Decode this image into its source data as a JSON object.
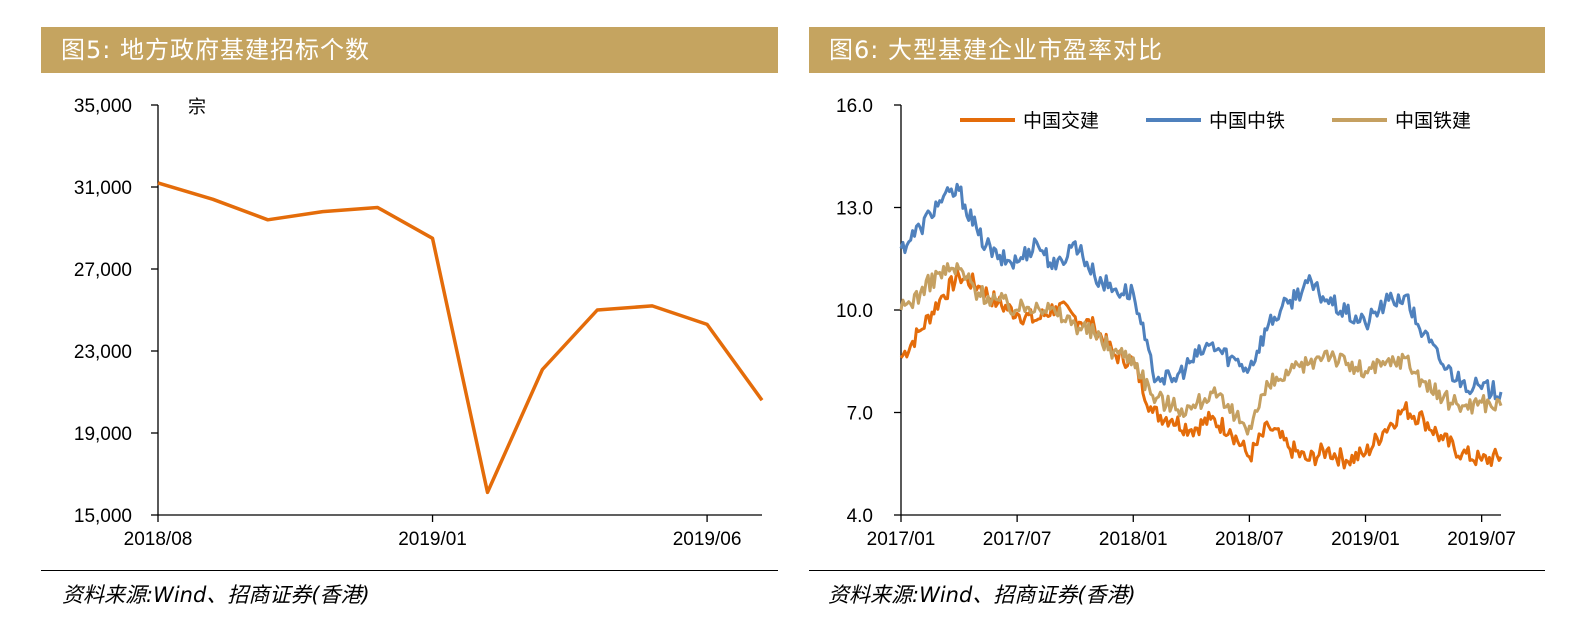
{
  "colors": {
    "title_bg": "#C5A460",
    "title_text": "#FFFFFF",
    "line_orange": "#E46C0A",
    "line_blue": "#4F81BD",
    "line_tan": "#C5A061"
  },
  "charts": [
    {
      "title": "图5: 地方政府基建招标个数",
      "source": "资料来源:Wind、招商证券(香港)"
    },
    {
      "title": "图6: 大型基建企业市盈率对比",
      "source": "资料来源:Wind、招商证券(香港)"
    }
  ],
  "chart_data": [
    {
      "type": "line",
      "title": "图5: 地方政府基建招标个数",
      "unit": "宗",
      "ylim": [
        15000,
        35000
      ],
      "yticks": [
        15000,
        19000,
        23000,
        27000,
        31000,
        35000
      ],
      "ytick_labels": [
        "15,000",
        "19,000",
        "23,000",
        "27,000",
        "31,000",
        "35,000"
      ],
      "categories": [
        "2018/08",
        "2018/09",
        "2018/10",
        "2018/11",
        "2018/12",
        "2019/01",
        "2019/02",
        "2019/03",
        "2019/04",
        "2019/05",
        "2019/06",
        "2019/07"
      ],
      "xtick_labels": [
        "2018/08",
        "2019/01",
        "2019/06"
      ],
      "xtick_categories": [
        "2018/08",
        "2019/01",
        "2019/06"
      ],
      "series": [
        {
          "name": "地方政府基建招标个数",
          "color": "#E46C0A",
          "values": [
            31200,
            30400,
            29400,
            29800,
            30000,
            28500,
            16100,
            22100,
            25000,
            25200,
            24300,
            20600
          ]
        }
      ]
    },
    {
      "type": "line",
      "title": "图6: 大型基建企业市盈率对比",
      "ylim": [
        4.0,
        16.0
      ],
      "yticks": [
        4.0,
        7.0,
        10.0,
        13.0,
        16.0
      ],
      "ytick_labels": [
        "4.0",
        "7.0",
        "10.0",
        "13.0",
        "16.0"
      ],
      "xlim": [
        "2017/01",
        "2019/08"
      ],
      "xticks": [
        "2017/01",
        "2017/07",
        "2018/01",
        "2018/07",
        "2019/01",
        "2019/07"
      ],
      "xtick_labels": [
        "2017/01",
        "2017/07",
        "2018/01",
        "2018/07",
        "2019/01",
        "2019/07"
      ],
      "legend": [
        "中国交建",
        "中国中铁",
        "中国铁建"
      ],
      "legend_position": "top-center",
      "series": [
        {
          "name": "中国交建",
          "color": "#E46C0A",
          "points": [
            [
              "2017/01",
              8.6
            ],
            [
              "2017/02",
              9.4
            ],
            [
              "2017/03",
              10.3
            ],
            [
              "2017/04",
              11.0
            ],
            [
              "2017/05",
              10.7
            ],
            [
              "2017/06",
              10.2
            ],
            [
              "2017/07",
              9.9
            ],
            [
              "2017/08",
              9.7
            ],
            [
              "2017/09",
              10.1
            ],
            [
              "2017/10",
              9.8
            ],
            [
              "2017/11",
              9.5
            ],
            [
              "2017/12",
              8.7
            ],
            [
              "2018/01",
              8.5
            ],
            [
              "2018/02",
              7.0
            ],
            [
              "2018/03",
              6.8
            ],
            [
              "2018/04",
              6.5
            ],
            [
              "2018/05",
              6.8
            ],
            [
              "2018/06",
              6.5
            ],
            [
              "2018/07",
              5.7
            ],
            [
              "2018/08",
              6.6
            ],
            [
              "2018/09",
              6.0
            ],
            [
              "2018/10",
              5.6
            ],
            [
              "2018/11",
              5.9
            ],
            [
              "2018/12",
              5.6
            ],
            [
              "2019/01",
              5.8
            ],
            [
              "2019/02",
              6.5
            ],
            [
              "2019/03",
              7.1
            ],
            [
              "2019/04",
              6.8
            ],
            [
              "2019/05",
              6.2
            ],
            [
              "2019/06",
              5.8
            ],
            [
              "2019/07",
              5.6
            ],
            [
              "2019/08",
              5.7
            ]
          ]
        },
        {
          "name": "中国中铁",
          "color": "#4F81BD",
          "points": [
            [
              "2017/01",
              11.8
            ],
            [
              "2017/02",
              12.4
            ],
            [
              "2017/03",
              13.2
            ],
            [
              "2017/04",
              13.5
            ],
            [
              "2017/05",
              12.2
            ],
            [
              "2017/06",
              11.5
            ],
            [
              "2017/07",
              11.4
            ],
            [
              "2017/08",
              12.0
            ],
            [
              "2017/09",
              11.2
            ],
            [
              "2017/10",
              12.0
            ],
            [
              "2017/11",
              11.0
            ],
            [
              "2017/12",
              10.6
            ],
            [
              "2018/01",
              10.5
            ],
            [
              "2018/02",
              8.2
            ],
            [
              "2018/03",
              7.9
            ],
            [
              "2018/04",
              8.5
            ],
            [
              "2018/05",
              9.0
            ],
            [
              "2018/06",
              8.6
            ],
            [
              "2018/07",
              8.3
            ],
            [
              "2018/08",
              9.6
            ],
            [
              "2018/09",
              10.2
            ],
            [
              "2018/10",
              10.8
            ],
            [
              "2018/11",
              10.3
            ],
            [
              "2018/12",
              9.9
            ],
            [
              "2019/01",
              9.6
            ],
            [
              "2019/02",
              10.2
            ],
            [
              "2019/03",
              10.4
            ],
            [
              "2019/04",
              9.3
            ],
            [
              "2019/05",
              8.4
            ],
            [
              "2019/06",
              7.9
            ],
            [
              "2019/07",
              7.7
            ],
            [
              "2019/08",
              7.6
            ]
          ]
        },
        {
          "name": "中国铁建",
          "color": "#C5A061",
          "points": [
            [
              "2017/01",
              10.0
            ],
            [
              "2017/02",
              10.5
            ],
            [
              "2017/03",
              11.1
            ],
            [
              "2017/04",
              11.2
            ],
            [
              "2017/05",
              10.5
            ],
            [
              "2017/06",
              10.3
            ],
            [
              "2017/07",
              10.0
            ],
            [
              "2017/08",
              10.2
            ],
            [
              "2017/09",
              9.9
            ],
            [
              "2017/10",
              9.6
            ],
            [
              "2017/11",
              9.3
            ],
            [
              "2017/12",
              8.8
            ],
            [
              "2018/01",
              8.6
            ],
            [
              "2018/02",
              7.5
            ],
            [
              "2018/03",
              7.2
            ],
            [
              "2018/04",
              7.1
            ],
            [
              "2018/05",
              7.6
            ],
            [
              "2018/06",
              7.0
            ],
            [
              "2018/07",
              6.6
            ],
            [
              "2018/08",
              7.8
            ],
            [
              "2018/09",
              8.1
            ],
            [
              "2018/10",
              8.4
            ],
            [
              "2018/11",
              8.8
            ],
            [
              "2018/12",
              8.4
            ],
            [
              "2019/01",
              8.2
            ],
            [
              "2019/02",
              8.4
            ],
            [
              "2019/03",
              8.6
            ],
            [
              "2019/04",
              7.9
            ],
            [
              "2019/05",
              7.4
            ],
            [
              "2019/06",
              7.2
            ],
            [
              "2019/07",
              7.3
            ],
            [
              "2019/08",
              7.2
            ]
          ]
        }
      ]
    }
  ]
}
